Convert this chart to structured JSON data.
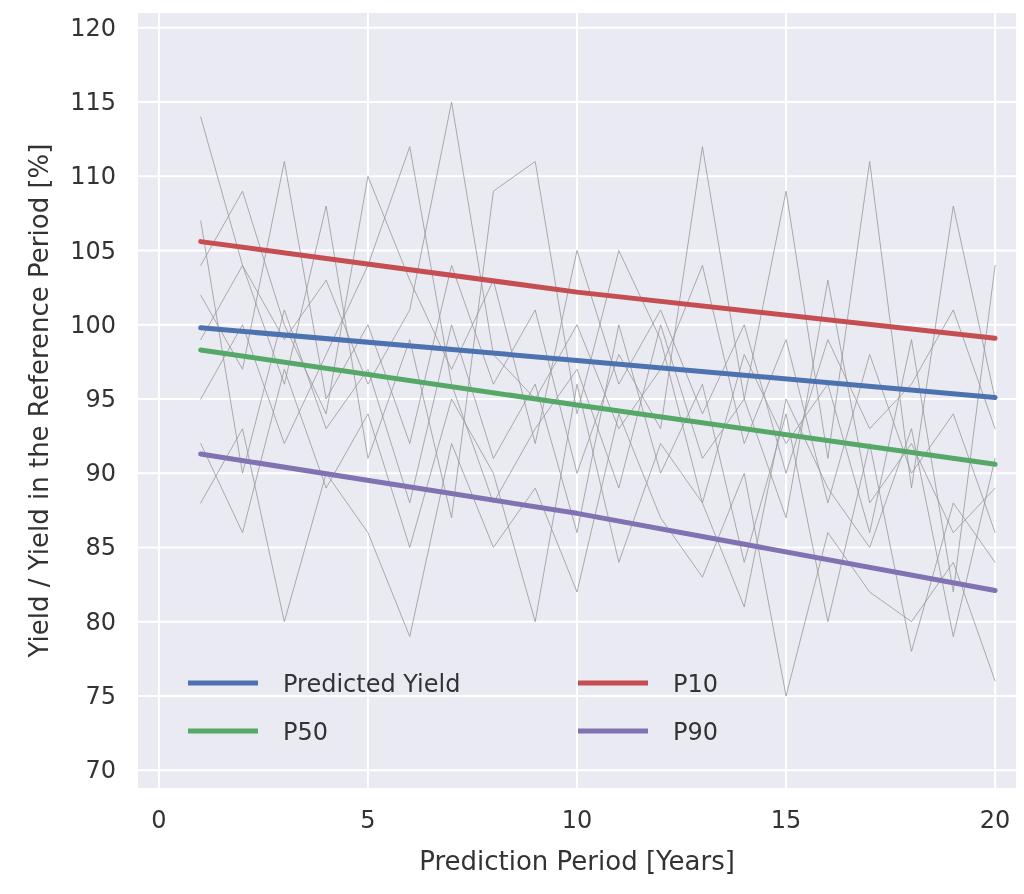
{
  "chart_data": {
    "type": "line",
    "xlabel": "Prediction Period [Years]",
    "ylabel": "Yield / Yield in the Reference Period [%]",
    "xlim": [
      -0.5,
      20.5
    ],
    "ylim": [
      68.8,
      121
    ],
    "xticks": [
      0,
      5,
      10,
      15,
      20
    ],
    "yticks": [
      70,
      75,
      80,
      85,
      90,
      95,
      100,
      105,
      110,
      115,
      120
    ],
    "grid": true,
    "legend": "bottom left",
    "x": [
      1,
      2,
      3,
      4,
      5,
      6,
      7,
      8,
      9,
      10,
      11,
      12,
      13,
      14,
      15,
      16,
      17,
      18,
      19,
      20
    ],
    "series": [
      {
        "color": "#999999",
        "values": [
          114,
          104,
          99,
          103,
          96,
          101,
          115,
          98,
          95,
          100,
          93,
          97,
          104,
          92,
          99,
          88,
          98,
          90,
          94,
          86
        ]
      },
      {
        "color": "#999999",
        "values": [
          88,
          93,
          80,
          90,
          86,
          79,
          92,
          85,
          89,
          82,
          94,
          87,
          83,
          90,
          75,
          86,
          82,
          80,
          84,
          76
        ]
      },
      {
        "color": "#999999",
        "values": [
          102,
          97,
          111,
          95,
          100,
          92,
          104,
          96,
          101,
          90,
          98,
          93,
          112,
          95,
          109,
          91,
          111,
          89,
          108,
          95
        ]
      },
      {
        "color": "#999999",
        "values": [
          95,
          100,
          92,
          98,
          104,
          112,
          96,
          88,
          93,
          97,
          89,
          100,
          91,
          95,
          87,
          103,
          88,
          92,
          86,
          89
        ]
      },
      {
        "color": "#999999",
        "values": [
          107,
          90,
          101,
          93,
          97,
          88,
          100,
          91,
          96,
          86,
          100,
          90,
          96,
          84,
          94,
          80,
          92,
          78,
          88,
          84
        ]
      },
      {
        "color": "#999999",
        "values": [
          99,
          104,
          96,
          108,
          91,
          99,
          87,
          109,
          111,
          94,
          105,
          99,
          88,
          98,
          92,
          96,
          86,
          99,
          82,
          104
        ]
      },
      {
        "color": "#999999",
        "values": [
          92,
          86,
          97,
          89,
          94,
          85,
          95,
          90,
          80,
          96,
          84,
          92,
          88,
          81,
          95,
          89,
          85,
          93,
          79,
          91
        ]
      },
      {
        "color": "#999999",
        "values": [
          104,
          109,
          100,
          94,
          110,
          103,
          97,
          103,
          92,
          105,
          96,
          101,
          94,
          100,
          90,
          99,
          93,
          96,
          101,
          93
        ]
      },
      {
        "name": "Predicted Yield",
        "color": "#4c72b0",
        "x": [
          1,
          10,
          20
        ],
        "values": [
          99.8,
          97.6,
          95.1
        ]
      },
      {
        "name": "P10",
        "color": "#c44e52",
        "x": [
          1,
          10,
          20
        ],
        "values": [
          105.6,
          102.2,
          99.1
        ]
      },
      {
        "name": "P50",
        "color": "#55a868",
        "x": [
          1,
          10,
          20
        ],
        "values": [
          98.3,
          94.6,
          90.6
        ]
      },
      {
        "name": "P90",
        "color": "#8172b2",
        "x": [
          1,
          10,
          20
        ],
        "values": [
          91.3,
          87.3,
          82.1
        ]
      }
    ]
  }
}
